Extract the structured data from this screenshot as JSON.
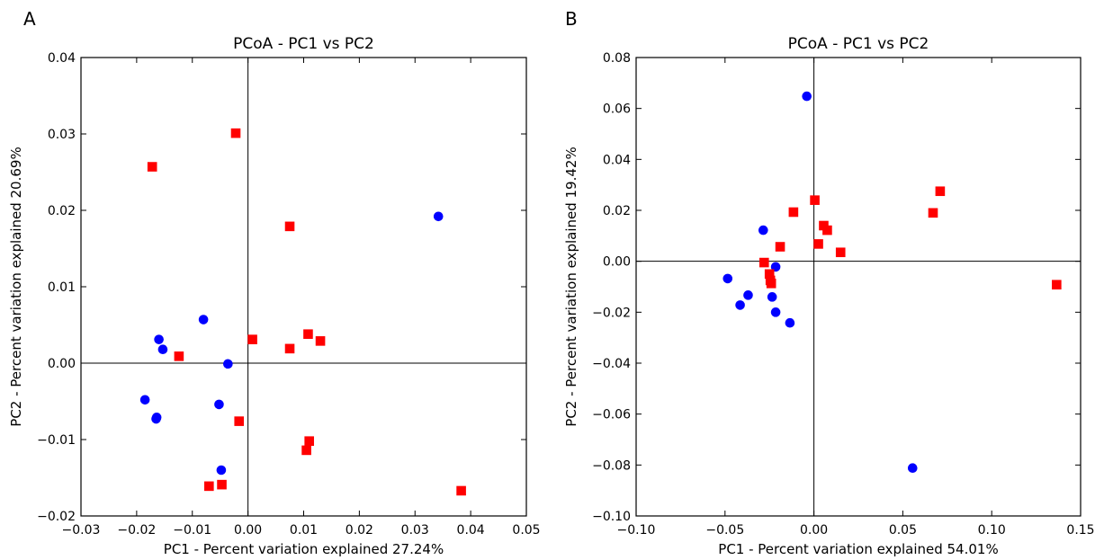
{
  "chart_data": [
    {
      "panel_label": "A",
      "type": "scatter",
      "title": "PCoA - PC1 vs PC2",
      "xlabel": "PC1 - Percent variation explained 27.24%",
      "ylabel": "PC2 - Percent variation explained 20.69%",
      "xlim": [
        -0.03,
        0.05
      ],
      "ylim": [
        -0.02,
        0.04
      ],
      "xticks": [
        -0.03,
        -0.02,
        -0.01,
        0.0,
        0.01,
        0.02,
        0.03,
        0.04,
        0.05
      ],
      "xtick_labels": [
        "−0.03",
        "−0.02",
        "−0.01",
        "0.00",
        "0.01",
        "0.02",
        "0.03",
        "0.04",
        "0.05"
      ],
      "yticks": [
        -0.02,
        -0.01,
        0.0,
        0.01,
        0.02,
        0.03,
        0.04
      ],
      "ytick_labels": [
        "−0.02",
        "−0.01",
        "0.00",
        "0.01",
        "0.02",
        "0.03",
        "0.04"
      ],
      "grid": false,
      "zero_lines": true,
      "series": [
        {
          "marker": "circle",
          "color": "#0000ff",
          "points": [
            {
              "x": -0.0185,
              "y": -0.0048
            },
            {
              "x": -0.0164,
              "y": -0.0071
            },
            {
              "x": -0.0165,
              "y": -0.0073
            },
            {
              "x": -0.016,
              "y": 0.0031
            },
            {
              "x": -0.0153,
              "y": 0.0018
            },
            {
              "x": -0.008,
              "y": 0.0057
            },
            {
              "x": -0.0052,
              "y": -0.0054
            },
            {
              "x": -0.0048,
              "y": -0.014
            },
            {
              "x": -0.0036,
              "y": -0.0001
            },
            {
              "x": 0.0342,
              "y": 0.0192
            }
          ]
        },
        {
          "marker": "square",
          "color": "#ff0000",
          "points": [
            {
              "x": -0.0172,
              "y": 0.0257
            },
            {
              "x": -0.0124,
              "y": 0.0009
            },
            {
              "x": -0.007,
              "y": -0.0161
            },
            {
              "x": -0.0047,
              "y": -0.0159
            },
            {
              "x": -0.0022,
              "y": 0.0301
            },
            {
              "x": -0.0016,
              "y": -0.0076
            },
            {
              "x": 0.0008,
              "y": 0.0031
            },
            {
              "x": 0.0075,
              "y": 0.0179
            },
            {
              "x": 0.0075,
              "y": 0.0019
            },
            {
              "x": 0.0105,
              "y": -0.0114
            },
            {
              "x": 0.0108,
              "y": 0.0038
            },
            {
              "x": 0.011,
              "y": -0.0102
            },
            {
              "x": 0.013,
              "y": 0.0029
            },
            {
              "x": 0.0383,
              "y": -0.0167
            }
          ]
        }
      ]
    },
    {
      "panel_label": "B",
      "type": "scatter",
      "title": "PCoA - PC1 vs PC2",
      "xlabel": "PC1 - Percent variation explained 54.01%",
      "ylabel": "PC2 - Percent variation explained 19.42%",
      "xlim": [
        -0.1,
        0.15
      ],
      "ylim": [
        -0.1,
        0.08
      ],
      "xticks": [
        -0.1,
        -0.05,
        0.0,
        0.05,
        0.1,
        0.15
      ],
      "xtick_labels": [
        "−0.10",
        "−0.05",
        "0.00",
        "0.05",
        "0.10",
        "0.15"
      ],
      "yticks": [
        -0.1,
        -0.08,
        -0.06,
        -0.04,
        -0.02,
        0.0,
        0.02,
        0.04,
        0.06,
        0.08
      ],
      "ytick_labels": [
        "−0.10",
        "−0.08",
        "−0.06",
        "−0.04",
        "−0.02",
        "0.00",
        "0.02",
        "0.04",
        "0.06",
        "0.08"
      ],
      "grid": false,
      "zero_lines": true,
      "series": [
        {
          "marker": "circle",
          "color": "#0000ff",
          "points": [
            {
              "x": -0.0485,
              "y": -0.0068
            },
            {
              "x": -0.0415,
              "y": -0.0172
            },
            {
              "x": -0.037,
              "y": -0.0133
            },
            {
              "x": -0.0285,
              "y": 0.0122
            },
            {
              "x": -0.0235,
              "y": -0.014
            },
            {
              "x": -0.0215,
              "y": -0.0022
            },
            {
              "x": -0.0215,
              "y": -0.02
            },
            {
              "x": -0.0135,
              "y": -0.0242
            },
            {
              "x": -0.004,
              "y": 0.0648
            },
            {
              "x": 0.0555,
              "y": -0.0812
            }
          ]
        },
        {
          "marker": "square",
          "color": "#ff0000",
          "points": [
            {
              "x": -0.028,
              "y": -0.0005
            },
            {
              "x": -0.025,
              "y": -0.005
            },
            {
              "x": -0.0245,
              "y": -0.0075
            },
            {
              "x": -0.024,
              "y": -0.0087
            },
            {
              "x": -0.019,
              "y": 0.0057
            },
            {
              "x": -0.0115,
              "y": 0.0193
            },
            {
              "x": 0.0005,
              "y": 0.024
            },
            {
              "x": 0.0025,
              "y": 0.0068
            },
            {
              "x": 0.0055,
              "y": 0.014
            },
            {
              "x": 0.0075,
              "y": 0.0122
            },
            {
              "x": 0.015,
              "y": 0.0035
            },
            {
              "x": 0.067,
              "y": 0.019
            },
            {
              "x": 0.071,
              "y": 0.0275
            },
            {
              "x": 0.1365,
              "y": -0.0092
            }
          ]
        }
      ]
    }
  ]
}
